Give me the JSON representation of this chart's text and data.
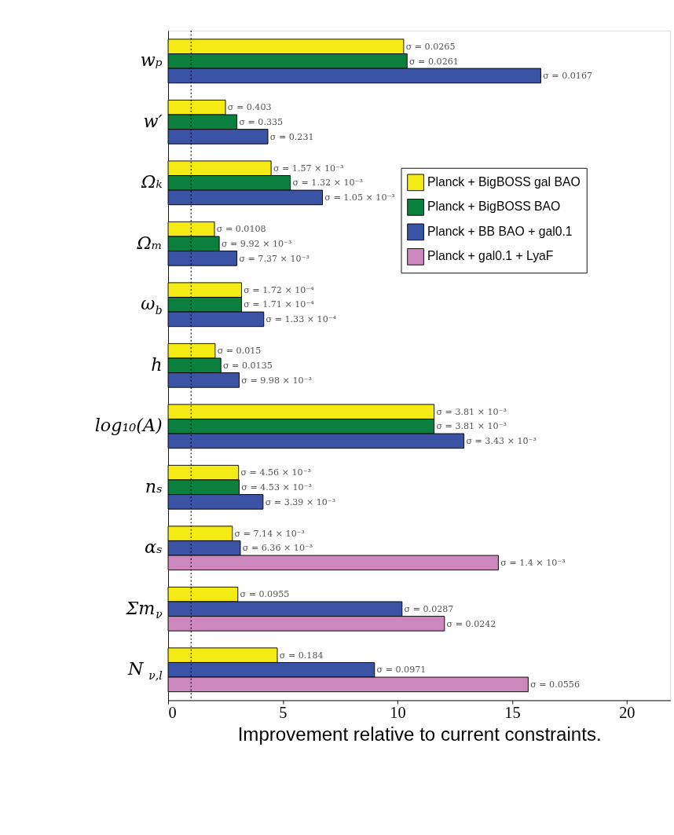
{
  "chart_data": {
    "type": "bar",
    "orientation": "horizontal",
    "xlabel": "Improvement relative to current constraints.",
    "categories": [
      "wₚ",
      "w′",
      "Ωₖ",
      "Ωₘ",
      "ω$_{b}$",
      "h",
      "log₁₀(A)",
      "nₛ",
      "αₛ",
      "Σm$_{ν}$",
      "N$_{ν,l}$"
    ],
    "series": [
      {
        "name": "Planck + BigBOSS gal BAO",
        "color": "#f5eb14",
        "values": [
          10.27,
          2.5,
          4.49,
          2.02,
          3.2,
          2.05,
          11.6,
          3.07,
          2.8,
          3.04,
          4.76
        ]
      },
      {
        "name": "Planck + BigBOSS BAO",
        "color": "#0b7f3e",
        "values": [
          10.42,
          3.0,
          5.33,
          2.23,
          3.2,
          2.3,
          11.6,
          3.1,
          null,
          null,
          null
        ]
      },
      {
        "name": "Planck + BB BAO + gal0.1",
        "color": "#3a53a4",
        "values": [
          16.25,
          4.35,
          6.73,
          3.0,
          4.17,
          3.1,
          12.9,
          4.14,
          3.15,
          10.2,
          9.0
        ]
      },
      {
        "name": "Planck + gal0.1 + LyaF",
        "color": "#cc88bd",
        "values": [
          null,
          null,
          null,
          null,
          null,
          null,
          null,
          null,
          14.4,
          12.05,
          15.7
        ]
      }
    ],
    "annotations": [
      "σ = 0.0265",
      "σ = 0.0261",
      "σ = 0.0167",
      "σ = 0.403",
      "σ = 0.335",
      "σ = 0.231",
      "σ = 1.57 × 10⁻³",
      "σ = 1.32 × 10⁻³",
      "σ = 1.05 × 10⁻³",
      "σ = 0.0108",
      "σ = 9.92 × 10⁻³",
      "σ = 7.37 × 10⁻³",
      "σ = 1.72 × 10⁻⁴",
      "σ = 1.71 × 10⁻⁴",
      "σ = 1.33 × 10⁻⁴",
      "σ = 0.015",
      "σ = 0.0135",
      "σ = 9.98 × 10⁻³",
      "σ = 3.81 × 10⁻³",
      "σ = 3.81 × 10⁻³",
      "σ = 3.43 × 10⁻³",
      "σ = 4.56 × 10⁻³",
      "σ = 4.53 × 10⁻³",
      "σ = 3.39 × 10⁻³",
      "σ = 7.14 × 10⁻³",
      "σ = 6.36 × 10⁻³",
      "σ = 1.4 × 10⁻³",
      "σ = 0.0955",
      "σ = 0.0287",
      "σ = 0.0242",
      "σ = 0.184",
      "σ = 0.0971",
      "σ = 0.0556"
    ],
    "xlim": [
      0,
      21.9
    ],
    "xticks": [
      0,
      5,
      10,
      15,
      20
    ],
    "ref_lines": [
      {
        "axis": "x",
        "value": 1,
        "line_style": "dotted"
      }
    ],
    "grid": false,
    "legend": "right"
  }
}
